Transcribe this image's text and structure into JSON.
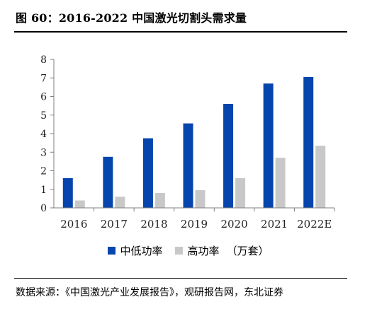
{
  "figure": {
    "title": "图 60：2016-2022 中国激光切割头需求量",
    "source": "数据来源：《中国激光产业发展报告》，观研报告网，东北证券",
    "unit": "（万套）"
  },
  "colors": {
    "series1": "#0645AD",
    "series2": "#C8C8C8"
  },
  "chart_data": {
    "type": "bar",
    "categories": [
      "2016",
      "2017",
      "2018",
      "2019",
      "2020",
      "2021",
      "2022E"
    ],
    "series": [
      {
        "name": "中低功率",
        "values": [
          1.6,
          2.75,
          3.75,
          4.55,
          5.6,
          6.7,
          7.05
        ]
      },
      {
        "name": "高功率",
        "values": [
          0.4,
          0.6,
          0.8,
          0.95,
          1.6,
          2.7,
          3.35
        ]
      }
    ],
    "yticks": [
      "0",
      "1",
      "2",
      "3",
      "4",
      "5",
      "6",
      "7",
      "8"
    ],
    "ylim": [
      0,
      8
    ],
    "grid": false,
    "legend": "bottom"
  }
}
